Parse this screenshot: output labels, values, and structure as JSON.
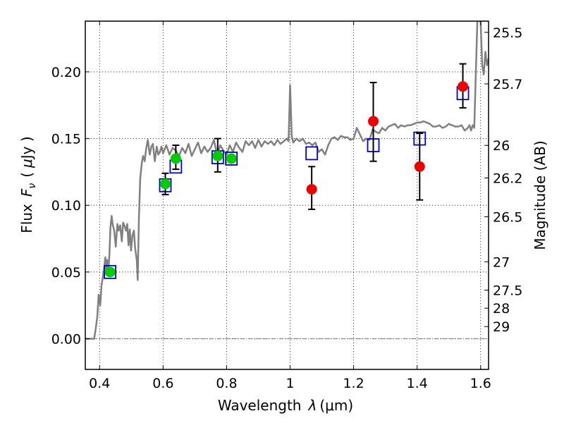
{
  "chart_data": {
    "type": "scatter",
    "xlabel": "Wavelength",
    "xlabel_symbol": "λ",
    "xlabel_unit": "(μm)",
    "ylabel": "Flux",
    "ylabel_symbol": "F",
    "ylabel_symbol_sub": "ν",
    "ylabel_unit_open": "(",
    "ylabel_unit_mu": "μ",
    "ylabel_unit_rest": "Jy )",
    "y2label": "Magnitude (AB)",
    "xlim": [
      0.355,
      1.625
    ],
    "ylim": [
      -0.023,
      0.238
    ],
    "x_ticks": [
      0.4,
      0.6,
      0.8,
      1.0,
      1.2,
      1.4,
      1.6
    ],
    "x_tick_labels": [
      "0.4",
      "0.6",
      "0.8",
      "1",
      "1.2",
      "1.4",
      "1.6"
    ],
    "y_ticks": [
      0.0,
      0.05,
      0.1,
      0.15,
      0.2
    ],
    "y_tick_labels": [
      "0.00",
      "0.05",
      "0.10",
      "0.15",
      "0.20"
    ],
    "y2_ticks": [
      {
        "label": "25.5",
        "flux": 0.2296
      },
      {
        "label": "25.7",
        "flux": 0.191
      },
      {
        "label": "26",
        "flux": 0.1449
      },
      {
        "label": "26.2",
        "flux": 0.1205
      },
      {
        "label": "26.5",
        "flux": 0.0914
      },
      {
        "label": "27",
        "flux": 0.0577
      },
      {
        "label": "27.5",
        "flux": 0.0364
      },
      {
        "label": "28",
        "flux": 0.0229
      },
      {
        "label": "29",
        "flux": 0.0091
      }
    ],
    "grid": true,
    "series": [
      {
        "type": "line",
        "color": "#808080",
        "x": [
          0.355,
          0.383,
          0.388,
          0.393,
          0.397,
          0.402,
          0.406,
          0.41,
          0.414,
          0.418,
          0.421,
          0.424,
          0.428,
          0.431,
          0.434,
          0.438,
          0.441,
          0.446,
          0.451,
          0.456,
          0.46,
          0.465,
          0.47,
          0.474,
          0.478,
          0.483,
          0.487,
          0.491,
          0.495,
          0.499,
          0.503,
          0.508,
          0.512,
          0.517,
          0.52,
          0.524,
          0.528,
          0.533,
          0.537,
          0.542,
          0.547,
          0.552,
          0.558,
          0.563,
          0.568,
          0.574,
          0.58,
          0.585,
          0.59,
          0.595,
          0.6,
          0.61,
          0.62,
          0.63,
          0.64,
          0.65,
          0.66,
          0.67,
          0.68,
          0.69,
          0.7,
          0.71,
          0.72,
          0.73,
          0.74,
          0.75,
          0.76,
          0.77,
          0.78,
          0.79,
          0.8,
          0.81,
          0.82,
          0.83,
          0.84,
          0.85,
          0.86,
          0.87,
          0.88,
          0.89,
          0.9,
          0.91,
          0.92,
          0.93,
          0.94,
          0.95,
          0.96,
          0.97,
          0.98,
          0.99,
          0.995,
          1.0,
          1.005,
          1.01,
          1.02,
          1.03,
          1.04,
          1.05,
          1.06,
          1.07,
          1.08,
          1.09,
          1.1,
          1.11,
          1.12,
          1.13,
          1.14,
          1.15,
          1.16,
          1.17,
          1.18,
          1.19,
          1.2,
          1.21,
          1.22,
          1.23,
          1.24,
          1.25,
          1.26,
          1.27,
          1.28,
          1.29,
          1.3,
          1.31,
          1.32,
          1.33,
          1.34,
          1.35,
          1.36,
          1.37,
          1.38,
          1.39,
          1.4,
          1.41,
          1.42,
          1.43,
          1.44,
          1.45,
          1.46,
          1.47,
          1.48,
          1.49,
          1.5,
          1.51,
          1.52,
          1.53,
          1.54,
          1.55,
          1.56,
          1.565,
          1.57,
          1.575,
          1.58,
          1.585,
          1.59,
          1.595,
          1.6,
          1.605,
          1.61,
          1.615,
          1.62,
          1.625
        ],
        "y": [
          0.0,
          0.0,
          0.008,
          0.017,
          0.033,
          0.025,
          0.04,
          0.046,
          0.052,
          0.061,
          0.051,
          0.059,
          0.052,
          0.063,
          0.083,
          0.092,
          0.086,
          0.081,
          0.069,
          0.086,
          0.081,
          0.085,
          0.073,
          0.087,
          0.085,
          0.081,
          0.086,
          0.07,
          0.082,
          0.066,
          0.077,
          0.081,
          0.068,
          0.059,
          0.044,
          0.091,
          0.12,
          0.132,
          0.137,
          0.133,
          0.143,
          0.149,
          0.138,
          0.144,
          0.146,
          0.133,
          0.144,
          0.138,
          0.14,
          0.144,
          0.139,
          0.145,
          0.138,
          0.143,
          0.141,
          0.137,
          0.143,
          0.139,
          0.146,
          0.137,
          0.142,
          0.147,
          0.139,
          0.144,
          0.14,
          0.143,
          0.149,
          0.138,
          0.145,
          0.141,
          0.138,
          0.145,
          0.14,
          0.147,
          0.143,
          0.14,
          0.148,
          0.145,
          0.148,
          0.143,
          0.149,
          0.144,
          0.148,
          0.146,
          0.148,
          0.145,
          0.149,
          0.146,
          0.148,
          0.15,
          0.148,
          0.19,
          0.152,
          0.147,
          0.15,
          0.148,
          0.15,
          0.146,
          0.147,
          0.145,
          0.147,
          0.14,
          0.142,
          0.138,
          0.145,
          0.15,
          0.151,
          0.149,
          0.152,
          0.151,
          0.151,
          0.149,
          0.15,
          0.158,
          0.153,
          0.148,
          0.15,
          0.149,
          0.157,
          0.155,
          0.154,
          0.158,
          0.156,
          0.159,
          0.16,
          0.161,
          0.158,
          0.16,
          0.159,
          0.16,
          0.16,
          0.161,
          0.162,
          0.162,
          0.163,
          0.162,
          0.161,
          0.159,
          0.159,
          0.16,
          0.158,
          0.159,
          0.161,
          0.16,
          0.159,
          0.159,
          0.16,
          0.156,
          0.158,
          0.16,
          0.156,
          0.16,
          0.158,
          0.2,
          0.24,
          0.245,
          0.238,
          0.205,
          0.198,
          0.215,
          0.205,
          0.21
        ]
      },
      {
        "type": "marker",
        "marker": "square",
        "color": "#0000cc",
        "x": [
          0.433,
          0.607,
          0.64,
          0.772,
          0.815,
          1.068,
          1.262,
          1.408,
          1.544
        ],
        "y": [
          0.05,
          0.115,
          0.129,
          0.136,
          0.135,
          0.139,
          0.145,
          0.15,
          0.184
        ]
      },
      {
        "type": "marker",
        "marker": "circle",
        "color": "#00cc00",
        "x": [
          0.433,
          0.607,
          0.64,
          0.772,
          0.815
        ],
        "y": [
          0.05,
          0.116,
          0.135,
          0.137,
          0.135
        ],
        "yerr_low": [
          null,
          0.108,
          0.127,
          0.125,
          null
        ],
        "yerr_high": [
          null,
          0.124,
          0.145,
          0.15,
          null
        ]
      },
      {
        "type": "marker",
        "marker": "circle",
        "color": "#ee0000",
        "x": [
          1.068,
          1.262,
          1.408,
          1.544
        ],
        "y": [
          0.112,
          0.163,
          0.129,
          0.189
        ],
        "yerr_low": [
          0.097,
          0.133,
          0.104,
          0.173
        ],
        "yerr_high": [
          0.129,
          0.192,
          0.154,
          0.206
        ]
      }
    ]
  }
}
